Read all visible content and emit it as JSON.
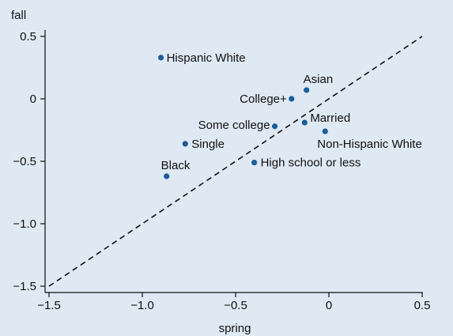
{
  "chart_data": {
    "type": "scatter",
    "xlabel": "spring",
    "ylabel": "fall",
    "xlim": [
      -1.5,
      0.5
    ],
    "ylim": [
      -1.5,
      0.5
    ],
    "x_ticks": [
      -1.5,
      -1.0,
      -0.5,
      0,
      0.5
    ],
    "x_tick_labels": [
      "−1.5",
      "−1.0",
      "−0.5",
      "0",
      "0.5"
    ],
    "y_ticks": [
      -1.5,
      -1.0,
      -0.5,
      0,
      0.5
    ],
    "y_tick_labels": [
      "−1.5",
      "−1.0",
      "−0.5",
      "0",
      "0.5"
    ],
    "reference_line": {
      "style": "dashed",
      "from": [
        -1.5,
        -1.5
      ],
      "to": [
        0.5,
        0.5
      ]
    },
    "grid": false,
    "point_color": "#1a5e9a",
    "points": [
      {
        "label": "Hispanic White",
        "x": -0.9,
        "y": 0.33
      },
      {
        "label": "Asian",
        "x": -0.12,
        "y": 0.07
      },
      {
        "label": "College+",
        "x": -0.2,
        "y": 0.0
      },
      {
        "label": "Some college",
        "x": -0.29,
        "y": -0.22
      },
      {
        "label": "Married",
        "x": -0.13,
        "y": -0.19
      },
      {
        "label": "Non-Hispanic White",
        "x": -0.02,
        "y": -0.26
      },
      {
        "label": "Single",
        "x": -0.77,
        "y": -0.36
      },
      {
        "label": "High school or less",
        "x": -0.4,
        "y": -0.51
      },
      {
        "label": "Black",
        "x": -0.87,
        "y": -0.62
      }
    ]
  }
}
